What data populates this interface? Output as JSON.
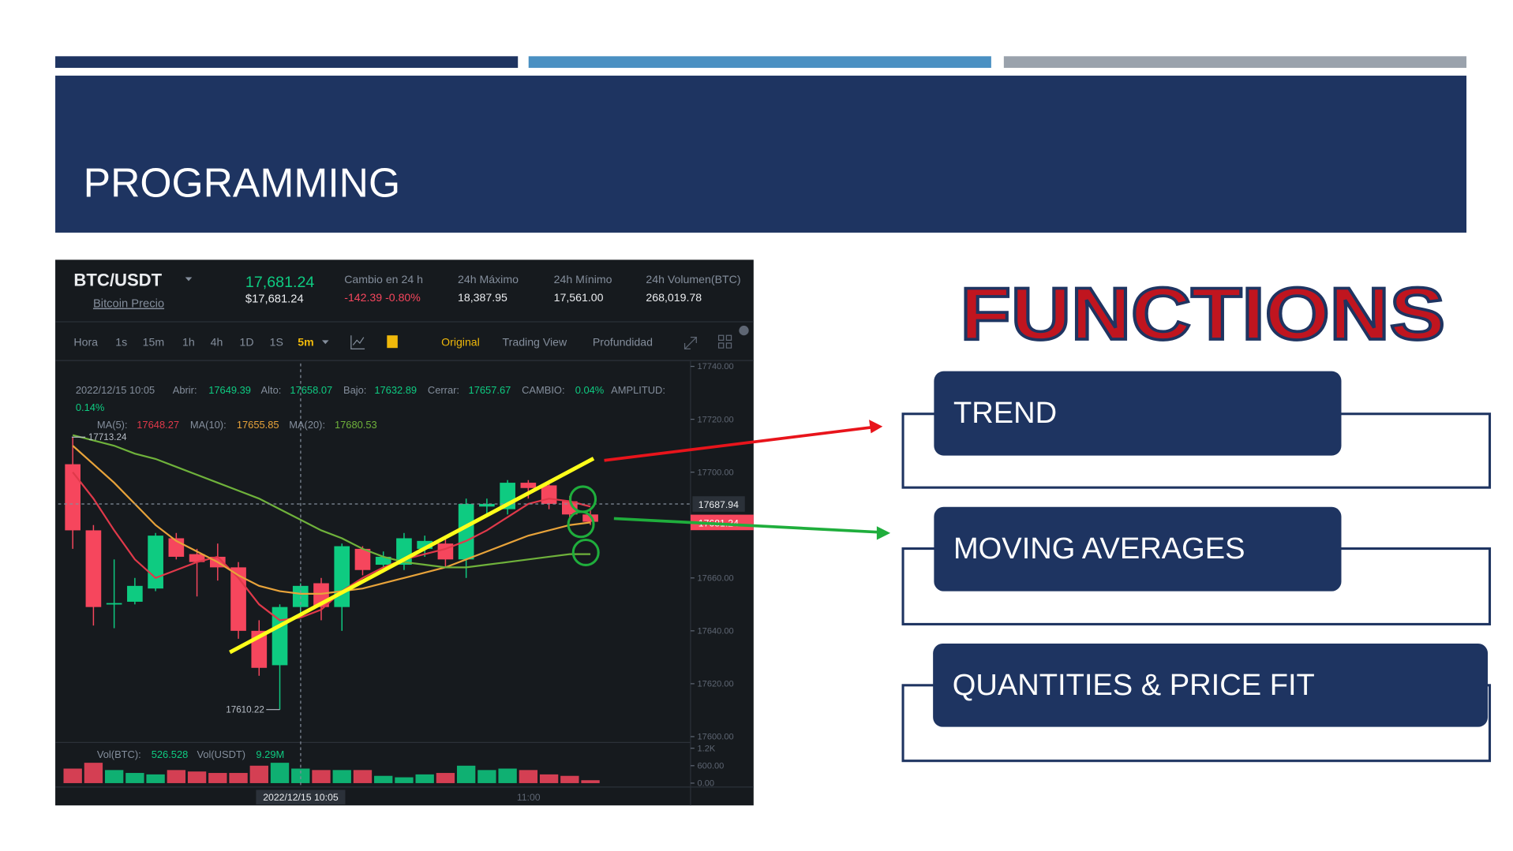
{
  "header_title": "PROGRAMMING",
  "functions_title": "FUNCTIONS",
  "functions": [
    "TREND",
    "MOVING AVERAGES",
    "QUANTITIES & PRICE FIT"
  ],
  "screenshot": {
    "pair": "BTC/USDT",
    "subtitle": "Bitcoin Precio",
    "last_price": "17,681.24",
    "last_price_usd": "$17,681.24",
    "stats": [
      {
        "label": "Cambio en 24 h",
        "value": "-142.39",
        "value2": "-0.80%"
      },
      {
        "label": "24h Máximo",
        "value": "18,387.95"
      },
      {
        "label": "24h Mínimo",
        "value": "17,561.00"
      },
      {
        "label": "24h Volumen(BTC)",
        "value": "268,019.78"
      }
    ],
    "toolbar": [
      "Hora",
      "1s",
      "15m",
      "1h",
      "4h",
      "1D",
      "1S",
      "5m"
    ],
    "views": [
      "Original",
      "Trading View",
      "Profundidad"
    ],
    "info_date": "2022/12/15 10:05",
    "info": [
      {
        "label": "Abrir:",
        "value": "17649.39"
      },
      {
        "label": "Alto:",
        "value": "17658.07"
      },
      {
        "label": "Bajo:",
        "value": "17632.89"
      },
      {
        "label": "Cerrar:",
        "value": "17657.67"
      },
      {
        "label": "CAMBIO:",
        "value": "0.04%"
      },
      {
        "label": "AMPLITUD:",
        "value": "0.14%"
      }
    ],
    "volume_legend": [
      {
        "label": "Vol(BTC):",
        "value": "526.528"
      },
      {
        "label": "Vol(USDT)",
        "value": "9.29M"
      }
    ],
    "crosshair_price": "17687.94",
    "current_price": "17681.24",
    "x_labels": [
      "2022/12/15 10:05",
      "11:00"
    ]
  },
  "chart_data": {
    "type": "candlestick",
    "open": [
      17703,
      17678,
      17650,
      17651,
      17656,
      17675,
      17669,
      17668,
      17664,
      17640,
      17627,
      17649,
      17658,
      17649,
      17671,
      17665,
      17665,
      17671,
      17673,
      17667,
      17687,
      17686,
      17696,
      17695,
      17689,
      17684
    ],
    "high": [
      17713.24,
      17680,
      17667,
      17660,
      17677,
      17677,
      17671,
      17673,
      17666,
      17644,
      17650,
      17658,
      17660,
      17673,
      17672,
      17670,
      17677,
      17676,
      17675,
      17690,
      17690,
      17697,
      17697,
      17697,
      17691,
      17686
    ],
    "low": [
      17671,
      17642,
      17641,
      17650,
      17655,
      17667,
      17653,
      17659,
      17637,
      17623,
      17610.22,
      17645,
      17644,
      17640,
      17661,
      17662,
      17663,
      17668,
      17664,
      17660,
      17684,
      17684,
      17690,
      17686,
      17682,
      17680
    ],
    "close": [
      17678,
      17649,
      17650.5,
      17657,
      17676,
      17668,
      17666,
      17664,
      17640,
      17626,
      17649,
      17657,
      17649,
      17672,
      17663,
      17668,
      17675,
      17674,
      17667,
      17688,
      17688,
      17696,
      17694,
      17688,
      17684,
      17681.24
    ],
    "up_color": "#0ecb81",
    "down_color": "#f6465d",
    "ylim": [
      17600,
      17740
    ],
    "yticks": [
      {
        "value": 17600,
        "label": "17600.00"
      },
      {
        "value": 17620,
        "label": "17620.00"
      },
      {
        "value": 17640,
        "label": "17640.00"
      },
      {
        "value": 17660,
        "label": "17660.00"
      },
      {
        "value": 17700,
        "label": "17700.00"
      },
      {
        "value": 17720,
        "label": "17720.00"
      },
      {
        "value": 17740,
        "label": "17740.00"
      }
    ],
    "lines": [
      {
        "name": "MA(5):",
        "value_label": "17648.27",
        "color": "#e0394a",
        "values": [
          17700,
          17690,
          17678,
          17667,
          17660,
          17663,
          17666,
          17668,
          17660,
          17650,
          17644,
          17645,
          17648,
          17655,
          17660,
          17664,
          17667,
          17669,
          17671,
          17674,
          17678,
          17683,
          17688,
          17690,
          17689,
          17687
        ]
      },
      {
        "name": "MA(10):",
        "value_label": "17655.85",
        "color": "#e8a33a",
        "values": [
          17710,
          17703,
          17696,
          17688,
          17680,
          17674,
          17670,
          17666,
          17661,
          17657,
          17655,
          17654,
          17654,
          17655,
          17656,
          17658,
          17660,
          17662,
          17664,
          17667,
          17670,
          17673,
          17676,
          17678,
          17680,
          17681
        ]
      },
      {
        "name": "MA(20):",
        "value_label": "17680.53",
        "color": "#6fb23b",
        "values": [
          17714,
          17712,
          17710,
          17707,
          17705,
          17702,
          17699,
          17696,
          17693,
          17690,
          17686,
          17682,
          17678,
          17675,
          17671,
          17668,
          17666,
          17665,
          17664,
          17664,
          17665,
          17666,
          17667,
          17668,
          17669,
          17669
        ]
      }
    ],
    "volume": {
      "values": [
        500,
        700,
        450,
        350,
        300,
        450,
        400,
        350,
        350,
        600,
        700,
        500,
        450,
        450,
        450,
        250,
        200,
        300,
        350,
        600,
        450,
        500,
        450,
        300,
        250,
        100
      ],
      "ylim": [
        0,
        1200
      ],
      "yticks": [
        {
          "value": 0,
          "label": "0.00"
        },
        {
          "value": 600,
          "label": "600.00"
        },
        {
          "value": 1200,
          "label": "1.2K"
        }
      ]
    }
  }
}
